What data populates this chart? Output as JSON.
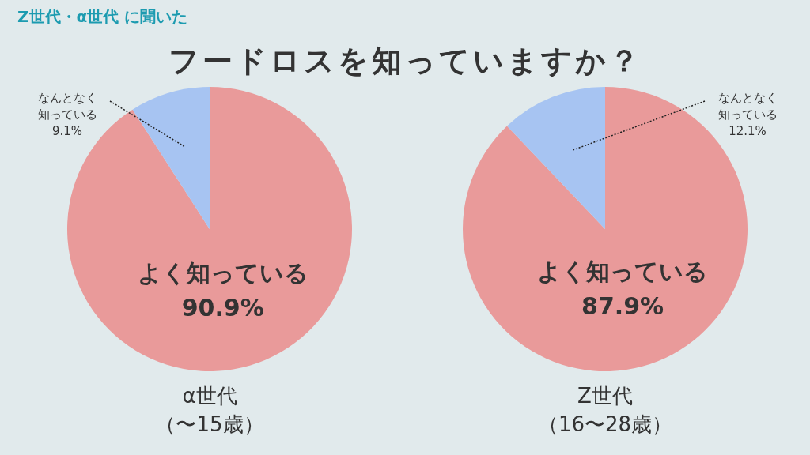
{
  "chart_data": [
    {
      "type": "pie",
      "title": "フードロスを知っていますか？",
      "subtitle": "Z世代・α世代 に聞いた",
      "xlabel": "α世代（〜15歳）",
      "categories": [
        "よく知っている",
        "なんとなく知っている"
      ],
      "values": [
        90.9,
        9.1
      ],
      "colors": [
        "#e99a9a",
        "#a7c4f2"
      ],
      "value_labels": [
        "90.9%",
        "9.1%"
      ]
    },
    {
      "type": "pie",
      "xlabel": "Z世代（16〜28歳）",
      "categories": [
        "よく知っている",
        "なんとなく知っている"
      ],
      "values": [
        87.9,
        12.1
      ],
      "colors": [
        "#e99a9a",
        "#a7c4f2"
      ],
      "value_labels": [
        "87.9%",
        "12.1%"
      ]
    }
  ]
}
